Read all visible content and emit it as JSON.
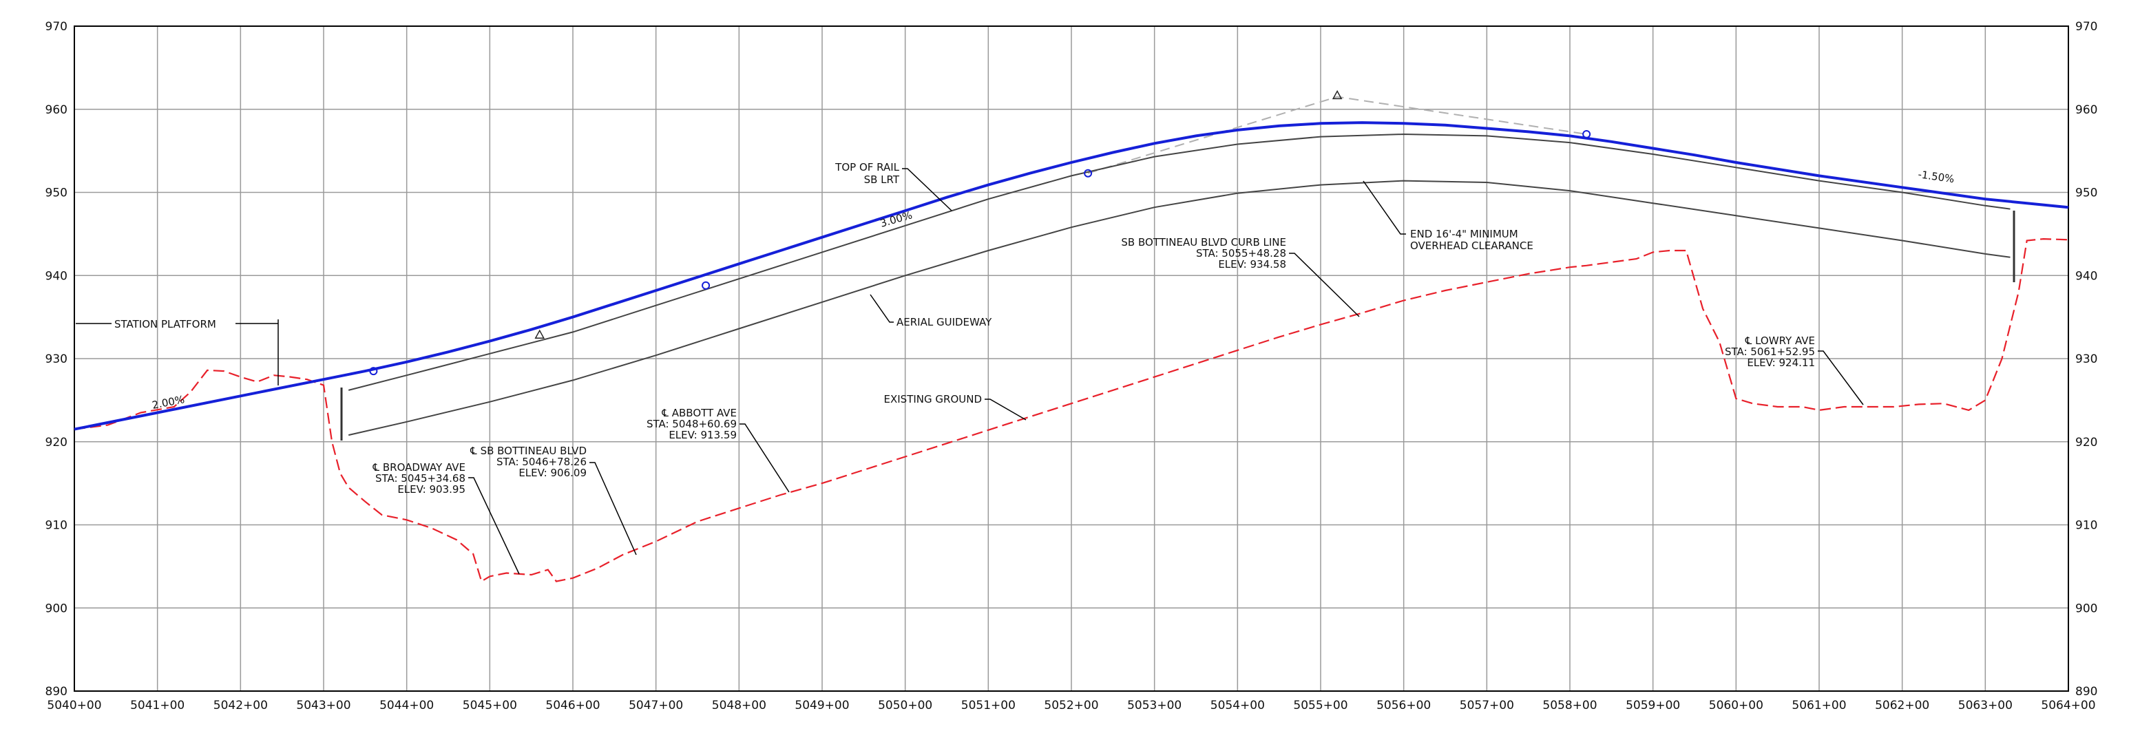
{
  "profile": {
    "elevation_axis": {
      "min": 890,
      "max": 970,
      "step": 10,
      "tick_labels": [
        "890",
        "900",
        "910",
        "920",
        "930",
        "940",
        "950",
        "960",
        "970"
      ]
    },
    "station_axis": {
      "min": 5040,
      "max": 5064,
      "tick_labels": [
        "5040+00",
        "5041+00",
        "5042+00",
        "5043+00",
        "5044+00",
        "5045+00",
        "5046+00",
        "5047+00",
        "5048+00",
        "5049+00",
        "5050+00",
        "5051+00",
        "5052+00",
        "5053+00",
        "5054+00",
        "5055+00",
        "5056+00",
        "5057+00",
        "5058+00",
        "5059+00",
        "5060+00",
        "5061+00",
        "5062+00",
        "5063+00",
        "5064+00"
      ]
    },
    "colors": {
      "top_of_rail": "#1520d8",
      "existing_ground": "#e8202a",
      "structure": "#444444",
      "grid": "#9a9a9a",
      "tangent": "#b0b0b0"
    },
    "grades": {
      "left": "2.00%",
      "middle": "3.00%",
      "right": "-1.50%"
    },
    "top_of_rail_label": [
      "TOP OF RAIL",
      "SB LRT"
    ],
    "station_platform_label": "STATION PLATFORM",
    "aerial_guideway_label": "AERIAL GUIDEWAY",
    "existing_ground_label": "EXISTING GROUND",
    "clearance_note": [
      "END 16'-4\" MINIMUM",
      "OVERHEAD CLEARANCE"
    ],
    "crossings": {
      "broadway": [
        "℄ BROADWAY AVE",
        "STA: 5045+34.68",
        "ELEV: 903.95"
      ],
      "bottineau": [
        "℄ SB BOTTINEAU BLVD",
        "STA: 5046+78.26",
        "ELEV: 906.09"
      ],
      "abbott": [
        "℄ ABBOTT AVE",
        "STA: 5048+60.69",
        "ELEV: 913.59"
      ],
      "curb": [
        "SB BOTTINEAU BLVD CURB LINE",
        "STA: 5055+48.28",
        "ELEV: 934.58"
      ],
      "lowry": [
        "℄ LOWRY AVE",
        "STA: 5061+52.95",
        "ELEV: 924.11"
      ]
    },
    "series": {
      "top_of_rail": {
        "x": [
          5040,
          5041,
          5042,
          5043,
          5043.5,
          5044,
          5044.5,
          5045,
          5045.5,
          5046,
          5046.5,
          5047,
          5047.5,
          5048,
          5048.5,
          5049,
          5049.5,
          5050,
          5050.5,
          5051,
          5051.5,
          5052,
          5052.5,
          5053,
          5053.5,
          5054,
          5054.5,
          5055,
          5055.5,
          5056,
          5056.5,
          5057,
          5057.5,
          5058,
          5058.5,
          5059,
          5059.5,
          5060,
          5061,
          5062,
          5063,
          5064
        ],
        "y": [
          921.5,
          923.5,
          925.5,
          927.5,
          928.5,
          929.6,
          930.8,
          932.1,
          933.5,
          935,
          936.6,
          938.2,
          939.8,
          941.4,
          943,
          944.6,
          946.2,
          947.8,
          949.4,
          950.9,
          952.3,
          953.6,
          954.8,
          955.9,
          956.8,
          957.5,
          958,
          958.3,
          958.4,
          958.3,
          958.1,
          957.7,
          957.3,
          956.8,
          956.1,
          955.3,
          954.5,
          953.6,
          952,
          950.6,
          949.2,
          948.2
        ]
      },
      "guideway_top": {
        "x": [
          5043.3,
          5044,
          5045,
          5046,
          5047,
          5048,
          5049,
          5050,
          5051,
          5052,
          5053,
          5054,
          5055,
          5056,
          5057,
          5058,
          5059,
          5060,
          5061,
          5062,
          5063,
          5063.3
        ],
        "y": [
          926.2,
          928,
          930.6,
          933.2,
          936.4,
          939.6,
          942.8,
          946,
          949.2,
          952,
          954.3,
          955.8,
          956.7,
          957,
          956.8,
          956,
          954.6,
          953,
          951.4,
          950,
          948.4,
          948
        ]
      },
      "guideway_bottom": {
        "x": [
          5043.3,
          5044,
          5045,
          5046,
          5047,
          5048,
          5049,
          5050,
          5051,
          5052,
          5053,
          5054,
          5055,
          5056,
          5057,
          5058,
          5059,
          5060,
          5061,
          5062,
          5063,
          5063.3
        ],
        "y": [
          920.8,
          922.4,
          924.8,
          927.4,
          930.4,
          933.6,
          936.8,
          940,
          943,
          945.8,
          948.2,
          949.9,
          950.9,
          951.4,
          951.2,
          950.2,
          948.7,
          947.2,
          945.7,
          944.2,
          942.6,
          942.2
        ]
      },
      "existing_ground": {
        "x": [
          5040,
          5040.4,
          5040.8,
          5041.2,
          5041.4,
          5041.6,
          5041.8,
          5042,
          5042.2,
          5042.4,
          5042.6,
          5042.8,
          5043,
          5043.1,
          5043.2,
          5043.3,
          5043.5,
          5043.7,
          5044,
          5044.3,
          5044.6,
          5044.8,
          5044.9,
          5045,
          5045.2,
          5045.5,
          5045.7,
          5045.8,
          5046,
          5046.3,
          5046.6,
          5047,
          5047.5,
          5048,
          5048.5,
          5049,
          5049.5,
          5050,
          5050.5,
          5051,
          5051.5,
          5052,
          5052.5,
          5053,
          5053.5,
          5054,
          5054.5,
          5055,
          5055.5,
          5056,
          5056.5,
          5057,
          5057.5,
          5058,
          5058.2,
          5058.5,
          5058.8,
          5059,
          5059.2,
          5059.4,
          5059.6,
          5059.8,
          5060,
          5060.2,
          5060.5,
          5060.8,
          5061,
          5061.3,
          5061.6,
          5061.9,
          5062.2,
          5062.5,
          5062.8,
          5063,
          5063.2,
          5063.4,
          5063.5,
          5063.7,
          5064
        ],
        "y": [
          921.5,
          922,
          923.5,
          924.2,
          926,
          928.6,
          928.5,
          927.8,
          927.2,
          928,
          927.8,
          927.5,
          926.8,
          920,
          916.2,
          914.5,
          912.8,
          911.2,
          910.6,
          909.6,
          908.2,
          906.5,
          903.2,
          903.8,
          904.2,
          904,
          904.6,
          903.2,
          903.6,
          904.8,
          906.4,
          908,
          910.4,
          912,
          913.6,
          915,
          916.6,
          918.2,
          919.8,
          921.4,
          923,
          924.6,
          926.2,
          927.8,
          929.4,
          931,
          932.6,
          934.1,
          935.5,
          937,
          938.2,
          939.2,
          940.2,
          941,
          941.2,
          941.6,
          942,
          942.8,
          943,
          943,
          936,
          932,
          925.2,
          924.6,
          924.2,
          924.2,
          923.8,
          924.2,
          924.2,
          924.2,
          924.5,
          924.6,
          923.8,
          925,
          930,
          938,
          944.2,
          944.4,
          944.3
        ]
      },
      "tangent_lines": {
        "x": [
          5052.2,
          5055.2,
          5058.2
        ],
        "y": [
          952.3,
          961.5,
          957
        ]
      },
      "pvi_markers": {
        "x": [
          5045.6,
          5055.2
        ],
        "y": [
          932.8,
          961.6
        ]
      },
      "pi_circles": {
        "x": [
          5043.6,
          5047.6,
          5052.2,
          5058.2
        ],
        "y": [
          928.5,
          938.8,
          952.3,
          957
        ]
      }
    }
  }
}
